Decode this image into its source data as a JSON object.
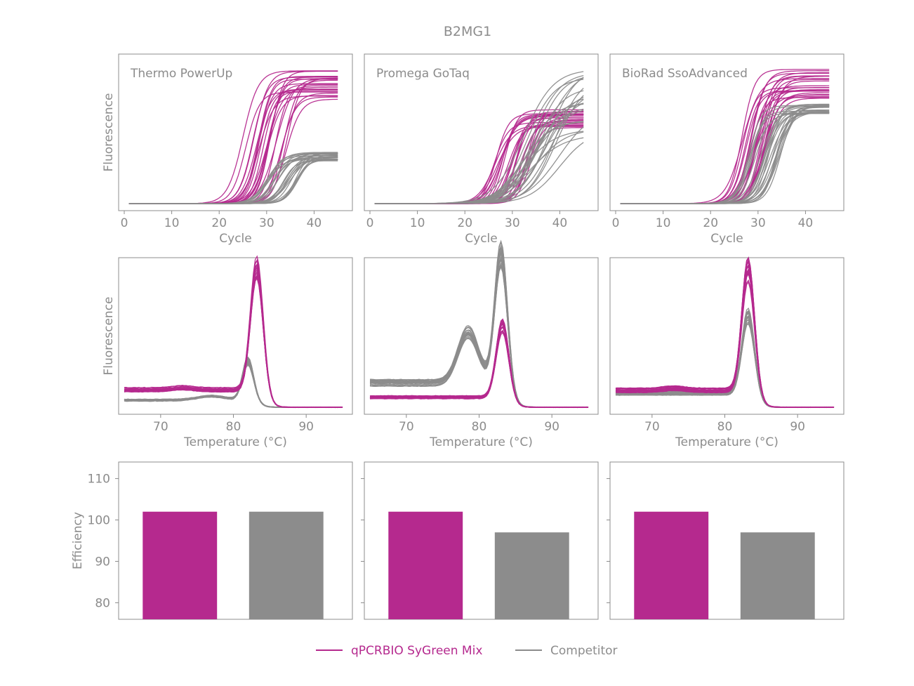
{
  "title": "B2MG1",
  "colors": {
    "sygreen": "#b5298e",
    "competitor": "#8c8c8c",
    "text": "#8c8c8c"
  },
  "legend": [
    {
      "label": "qPCRBIO SyGreen Mix",
      "color": "#b5298e"
    },
    {
      "label": "Competitor",
      "color": "#8c8c8c"
    }
  ],
  "chart_data": [
    {
      "type": "line",
      "panel": "amplification",
      "title": "Thermo PowerUp",
      "xlabel": "Cycle",
      "ylabel": "Fluorescence",
      "xlim": [
        0,
        46
      ],
      "xticks": [
        0,
        10,
        20,
        30,
        40
      ],
      "y_tick_labels": false,
      "series": [
        {
          "group": "sygreen",
          "count": 24,
          "midpoint_range": [
            25,
            35
          ],
          "plateau_range": [
            0.72,
            0.95
          ]
        },
        {
          "group": "competitor",
          "count": 24,
          "midpoint_range": [
            30,
            37
          ],
          "plateau_range": [
            0.3,
            0.36
          ]
        }
      ]
    },
    {
      "type": "line",
      "panel": "amplification",
      "title": "Promega GoTaq",
      "xlabel": "Cycle",
      "ylabel": "",
      "xlim": [
        0,
        46
      ],
      "xticks": [
        0,
        10,
        20,
        30,
        40
      ],
      "y_tick_labels": false,
      "series": [
        {
          "group": "sygreen",
          "count": 24,
          "midpoint_range": [
            26,
            34
          ],
          "plateau_range": [
            0.53,
            0.66
          ]
        },
        {
          "group": "competitor",
          "count": 24,
          "midpoint_range": [
            31,
            40
          ],
          "plateau_range": [
            0.48,
            0.98
          ]
        }
      ]
    },
    {
      "type": "line",
      "panel": "amplification",
      "title": "BioRad SsoAdvanced",
      "xlabel": "Cycle",
      "ylabel": "",
      "xlim": [
        0,
        46
      ],
      "xticks": [
        0,
        10,
        20,
        30,
        40
      ],
      "y_tick_labels": false,
      "series": [
        {
          "group": "sygreen",
          "count": 24,
          "midpoint_range": [
            26,
            32
          ],
          "plateau_range": [
            0.74,
            0.96
          ]
        },
        {
          "group": "competitor",
          "count": 24,
          "midpoint_range": [
            28,
            35
          ],
          "plateau_range": [
            0.63,
            0.7
          ]
        }
      ]
    },
    {
      "type": "line",
      "panel": "melt",
      "title": "",
      "xlabel": "Temperature (°C)",
      "ylabel": "Fluorescence",
      "xlim": [
        65,
        95
      ],
      "xticks": [
        70,
        80,
        90
      ],
      "y_tick_labels": false,
      "series": [
        {
          "group": "competitor",
          "count": 20,
          "base": 0.05,
          "peaks": [
            [
              82,
              0.3,
              0.75
            ],
            [
              77,
              0.03,
              2.0
            ]
          ]
        },
        {
          "group": "sygreen",
          "count": 20,
          "base": 0.12,
          "peaks": [
            [
              83.2,
              0.93,
              0.85
            ],
            [
              73,
              0.015,
              1.5
            ]
          ]
        }
      ]
    },
    {
      "type": "line",
      "panel": "melt",
      "title": "",
      "xlabel": "Temperature (°C)",
      "ylabel": "",
      "xlim": [
        65,
        95
      ],
      "xticks": [
        70,
        80,
        90
      ],
      "y_tick_labels": false,
      "series": [
        {
          "group": "competitor",
          "count": 20,
          "base": 0.17,
          "peaks": [
            [
              83,
              0.98,
              0.85
            ],
            [
              78.5,
              0.38,
              1.4
            ]
          ]
        },
        {
          "group": "sygreen",
          "count": 20,
          "base": 0.07,
          "peaks": [
            [
              83.2,
              0.55,
              0.85
            ]
          ]
        }
      ]
    },
    {
      "type": "line",
      "panel": "melt",
      "title": "",
      "xlabel": "Temperature (°C)",
      "ylabel": "",
      "xlim": [
        65,
        95
      ],
      "xticks": [
        70,
        80,
        90
      ],
      "y_tick_labels": false,
      "series": [
        {
          "group": "competitor",
          "count": 20,
          "base": 0.1,
          "peaks": [
            [
              83.2,
              0.6,
              0.85
            ]
          ]
        },
        {
          "group": "sygreen",
          "count": 20,
          "base": 0.12,
          "peaks": [
            [
              83.2,
              0.93,
              0.85
            ],
            [
              73,
              0.015,
              1.5
            ]
          ]
        }
      ]
    },
    {
      "type": "bar",
      "panel": "efficiency",
      "title": "",
      "xlabel": "",
      "ylabel": "Efficiency",
      "ylim": [
        76,
        114
      ],
      "yticks": [
        80,
        90,
        100,
        110
      ],
      "categories": [
        "qPCRBIO SyGreen Mix",
        "Competitor"
      ],
      "values": [
        102,
        102
      ]
    },
    {
      "type": "bar",
      "panel": "efficiency",
      "title": "",
      "xlabel": "",
      "ylabel": "",
      "ylim": [
        76,
        114
      ],
      "yticks": [
        80,
        90,
        100,
        110
      ],
      "categories": [
        "qPCRBIO SyGreen Mix",
        "Competitor"
      ],
      "values": [
        102,
        97
      ]
    },
    {
      "type": "bar",
      "panel": "efficiency",
      "title": "",
      "xlabel": "",
      "ylabel": "",
      "ylim": [
        76,
        114
      ],
      "yticks": [
        80,
        90,
        100,
        110
      ],
      "categories": [
        "qPCRBIO SyGreen Mix",
        "Competitor"
      ],
      "values": [
        102,
        97
      ]
    }
  ]
}
